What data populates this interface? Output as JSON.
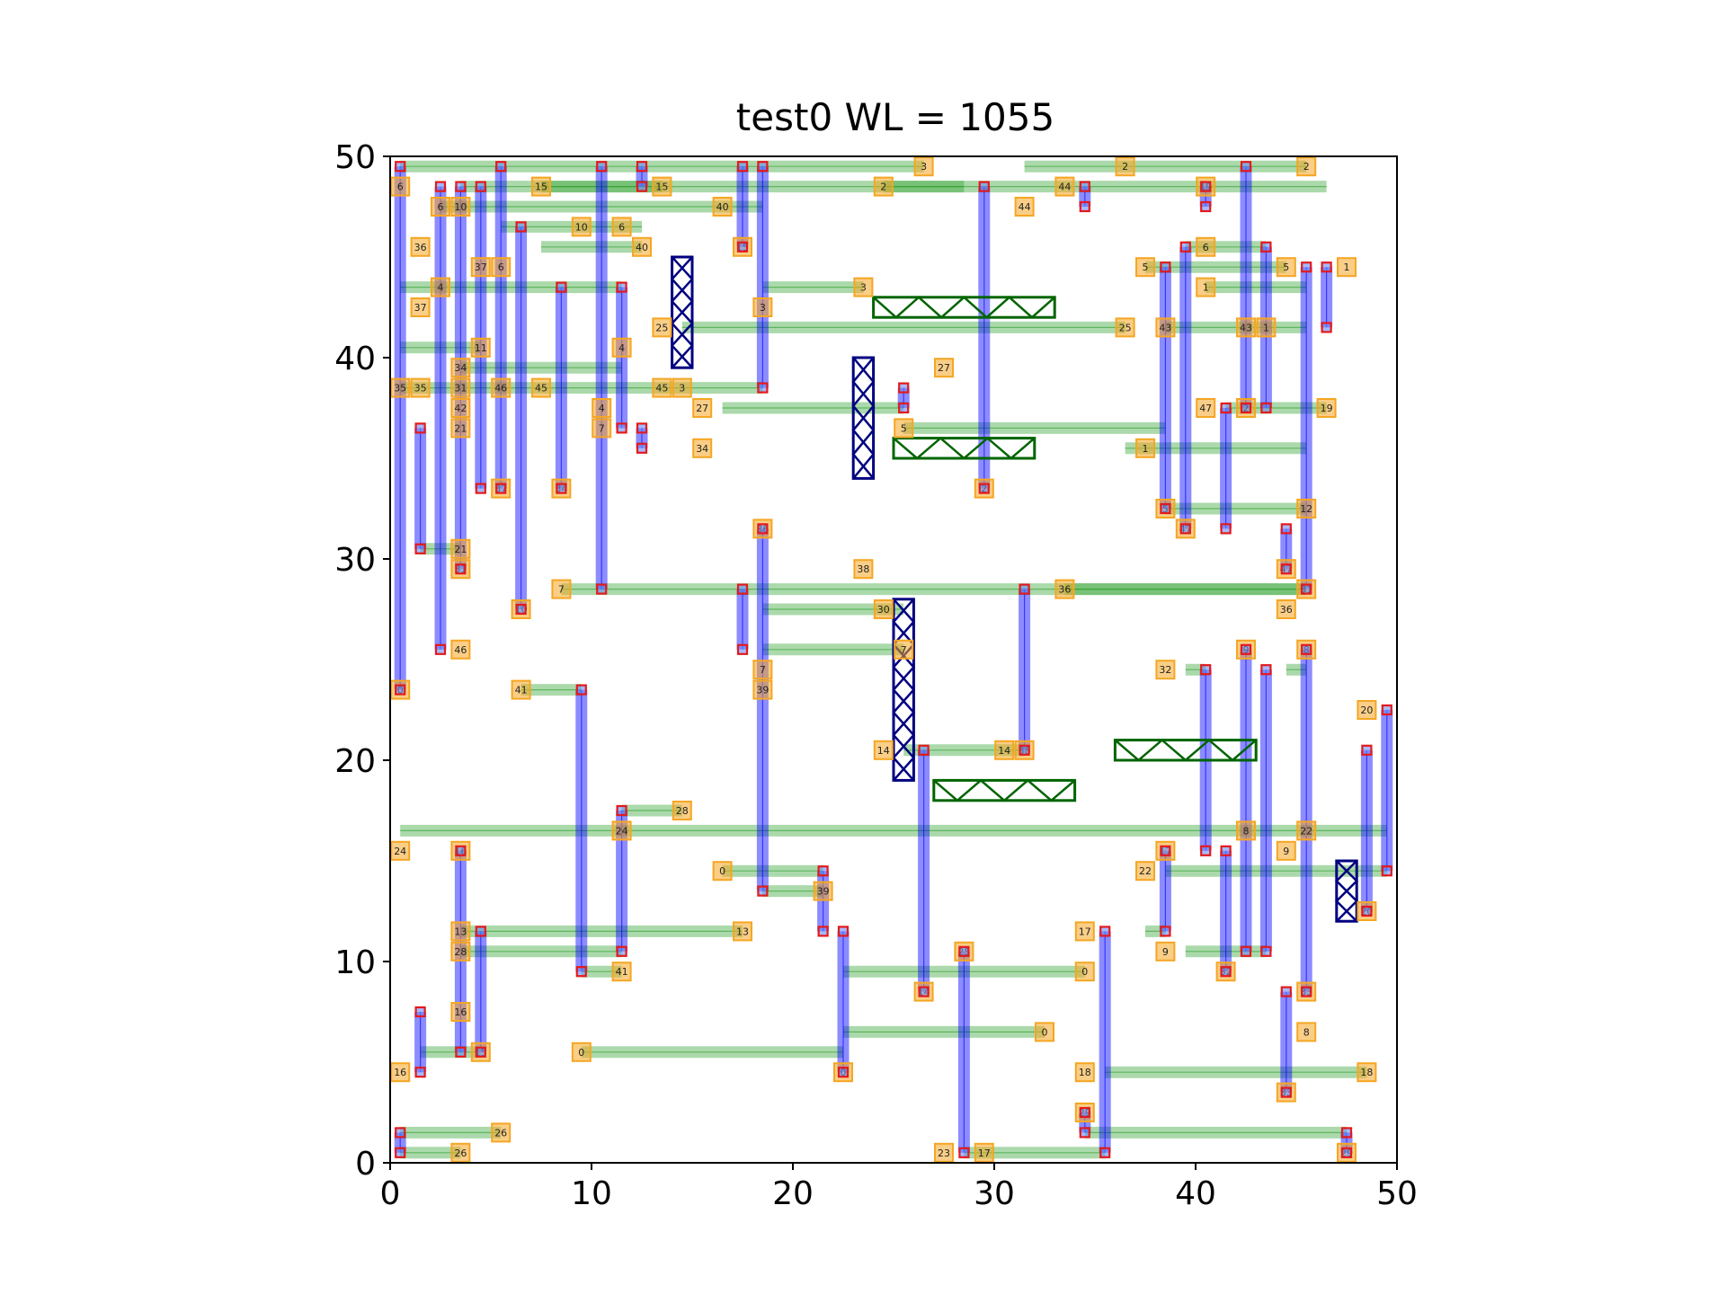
{
  "chart_data": {
    "type": "scatter",
    "title": "test0 WL = 1055",
    "xlabel": "",
    "ylabel": "",
    "xlim": [
      0,
      50
    ],
    "ylim": [
      0,
      50
    ],
    "xticks": [
      0,
      10,
      20,
      30,
      40,
      50
    ],
    "yticks": [
      0,
      10,
      20,
      30,
      40,
      50
    ],
    "grid": false,
    "colors": {
      "horizontal_wire": "#2ca02c",
      "vertical_wire": "#0000ff",
      "pin_box": "#f5a623",
      "via": "#e41a1c",
      "obstacle_v": "#000080",
      "obstacle_h": "#006400"
    },
    "horizontal_segments": [
      [
        0.5,
        49.5,
        26.5
      ],
      [
        3.5,
        48.5,
        46.5
      ],
      [
        2.5,
        47.5,
        18.5
      ],
      [
        5.5,
        46.5,
        12.5
      ],
      [
        7.5,
        45.5,
        12.5
      ],
      [
        0.5,
        43.5,
        11.5
      ],
      [
        0.5,
        40.5,
        4.5
      ],
      [
        3.5,
        39.5,
        11.5
      ],
      [
        0.5,
        38.5,
        18.5
      ],
      [
        14.5,
        41.5,
        36.5
      ],
      [
        16.5,
        37.5,
        25.5
      ],
      [
        25.5,
        36.5,
        38.5
      ],
      [
        18.5,
        43.5,
        23.5
      ],
      [
        1.5,
        30.5,
        3.5
      ],
      [
        8.5,
        28.5,
        45.5
      ],
      [
        18.5,
        27.5,
        25.5
      ],
      [
        18.5,
        25.5,
        25.5
      ],
      [
        6.5,
        23.5,
        9.5
      ],
      [
        25.5,
        20.5,
        31.5
      ],
      [
        0.5,
        16.5,
        49.5
      ],
      [
        11.5,
        17.5,
        14.5
      ],
      [
        16.5,
        14.5,
        21.5
      ],
      [
        18.5,
        13.5,
        21.5
      ],
      [
        3.5,
        11.5,
        17.5
      ],
      [
        3.5,
        10.5,
        11.5
      ],
      [
        9.5,
        9.5,
        11.5
      ],
      [
        22.5,
        9.5,
        34.5
      ],
      [
        22.5,
        6.5,
        32.5
      ],
      [
        9.5,
        5.5,
        22.5
      ],
      [
        1.5,
        5.5,
        4.5
      ],
      [
        0.5,
        1.5,
        5.5
      ],
      [
        0.5,
        0.5,
        3.5
      ],
      [
        28.5,
        0.5,
        35.5
      ],
      [
        35.5,
        4.5,
        48.5
      ],
      [
        34.5,
        1.5,
        47.5
      ],
      [
        38.5,
        14.5,
        49.5
      ],
      [
        37.5,
        11.5,
        38.5
      ],
      [
        39.5,
        10.5,
        43.5
      ],
      [
        36.5,
        35.5,
        45.5
      ],
      [
        38.5,
        32.5,
        45.5
      ],
      [
        41.5,
        37.5,
        46.5
      ],
      [
        40.5,
        43.5,
        45.5
      ],
      [
        38.5,
        41.5,
        45.5
      ],
      [
        37.5,
        44.5,
        44.5
      ],
      [
        39.5,
        45.5,
        43.5
      ],
      [
        24.5,
        48.5,
        28.5
      ],
      [
        31.5,
        49.5,
        45.5
      ],
      [
        7.5,
        48.5,
        13.5
      ],
      [
        33.5,
        28.5,
        45.5
      ],
      [
        39.5,
        24.5,
        40.5
      ],
      [
        44.5,
        24.5,
        45.5
      ]
    ],
    "vertical_segments": [
      [
        0.5,
        23.5,
        49.5
      ],
      [
        1.5,
        30.5,
        36.5
      ],
      [
        2.5,
        25.5,
        48.5
      ],
      [
        3.5,
        29.5,
        48.5
      ],
      [
        4.5,
        33.5,
        48.5
      ],
      [
        5.5,
        33.5,
        49.5
      ],
      [
        6.5,
        27.5,
        46.5
      ],
      [
        8.5,
        33.5,
        43.5
      ],
      [
        10.5,
        28.5,
        49.5
      ],
      [
        11.5,
        36.5,
        43.5
      ],
      [
        17.5,
        25.5,
        28.5
      ],
      [
        17.5,
        45.5,
        49.5
      ],
      [
        18.5,
        38.5,
        49.5
      ],
      [
        18.5,
        13.5,
        31.5
      ],
      [
        29.5,
        33.5,
        48.5
      ],
      [
        31.5,
        20.5,
        28.5
      ],
      [
        25.5,
        37.5,
        38.5
      ],
      [
        26.5,
        8.5,
        20.5
      ],
      [
        9.5,
        9.5,
        23.5
      ],
      [
        11.5,
        10.5,
        17.5
      ],
      [
        3.5,
        5.5,
        15.5
      ],
      [
        4.5,
        5.5,
        11.5
      ],
      [
        1.5,
        4.5,
        7.5
      ],
      [
        0.5,
        0.5,
        1.5
      ],
      [
        21.5,
        11.5,
        14.5
      ],
      [
        22.5,
        4.5,
        11.5
      ],
      [
        28.5,
        0.5,
        10.5
      ],
      [
        35.5,
        0.5,
        11.5
      ],
      [
        34.5,
        1.5,
        2.5
      ],
      [
        38.5,
        11.5,
        15.5
      ],
      [
        40.5,
        15.5,
        24.5
      ],
      [
        41.5,
        9.5,
        15.5
      ],
      [
        42.5,
        10.5,
        25.5
      ],
      [
        43.5,
        10.5,
        24.5
      ],
      [
        45.5,
        8.5,
        25.5
      ],
      [
        44.5,
        3.5,
        8.5
      ],
      [
        47.5,
        0.5,
        1.5
      ],
      [
        48.5,
        12.5,
        20.5
      ],
      [
        49.5,
        14.5,
        22.5
      ],
      [
        38.5,
        32.5,
        44.5
      ],
      [
        39.5,
        31.5,
        45.5
      ],
      [
        41.5,
        31.5,
        37.5
      ],
      [
        42.5,
        37.5,
        49.5
      ],
      [
        43.5,
        37.5,
        45.5
      ],
      [
        44.5,
        29.5,
        31.5
      ],
      [
        45.5,
        28.5,
        44.5
      ],
      [
        46.5,
        41.5,
        44.5
      ],
      [
        40.5,
        47.5,
        48.5
      ],
      [
        34.5,
        47.5,
        48.5
      ],
      [
        12.5,
        48.5,
        49.5
      ],
      [
        12.5,
        35.5,
        36.5
      ]
    ],
    "pins": [
      [
        0.5,
        48.5,
        "6"
      ],
      [
        2.5,
        47.5,
        "6"
      ],
      [
        1.5,
        45.5,
        "36"
      ],
      [
        3.5,
        47.5,
        "10"
      ],
      [
        4.5,
        44.5,
        "37"
      ],
      [
        5.5,
        44.5,
        "6"
      ],
      [
        0.5,
        38.5,
        "35"
      ],
      [
        1.5,
        38.5,
        "35"
      ],
      [
        3.5,
        38.5,
        "31"
      ],
      [
        5.5,
        38.5,
        "46"
      ],
      [
        7.5,
        38.5,
        "45"
      ],
      [
        13.5,
        38.5,
        "45"
      ],
      [
        14.5,
        38.5,
        "3"
      ],
      [
        2.5,
        43.5,
        "4"
      ],
      [
        1.5,
        42.5,
        "37"
      ],
      [
        4.5,
        40.5,
        "11"
      ],
      [
        3.5,
        39.5,
        "34"
      ],
      [
        3.5,
        37.5,
        "42"
      ],
      [
        3.5,
        36.5,
        "21"
      ],
      [
        5.5,
        33.5,
        "37"
      ],
      [
        8.5,
        33.5,
        "34"
      ],
      [
        3.5,
        30.5,
        "21"
      ],
      [
        3.5,
        29.5,
        "31"
      ],
      [
        6.5,
        27.5,
        "10"
      ],
      [
        3.5,
        25.5,
        "46"
      ],
      [
        0.5,
        23.5,
        "0"
      ],
      [
        8.5,
        28.5,
        "7"
      ],
      [
        10.5,
        37.5,
        "4"
      ],
      [
        10.5,
        36.5,
        "7"
      ],
      [
        11.5,
        40.5,
        "4"
      ],
      [
        15.5,
        35.5,
        "34"
      ],
      [
        15.5,
        37.5,
        "27"
      ],
      [
        13.5,
        41.5,
        "25"
      ],
      [
        7.5,
        48.5,
        "15"
      ],
      [
        13.5,
        48.5,
        "15"
      ],
      [
        16.5,
        47.5,
        "40"
      ],
      [
        9.5,
        46.5,
        "10"
      ],
      [
        11.5,
        46.5,
        "6"
      ],
      [
        12.5,
        45.5,
        "40"
      ],
      [
        17.5,
        45.5,
        "15"
      ],
      [
        26.5,
        49.5,
        "3"
      ],
      [
        23.5,
        43.5,
        "3"
      ],
      [
        18.5,
        42.5,
        "3"
      ],
      [
        27.5,
        39.5,
        "27"
      ],
      [
        24.5,
        48.5,
        "2"
      ],
      [
        31.5,
        47.5,
        "44"
      ],
      [
        33.5,
        48.5,
        "44"
      ],
      [
        36.5,
        49.5,
        "2"
      ],
      [
        45.5,
        49.5,
        "2"
      ],
      [
        40.5,
        48.5,
        "19"
      ],
      [
        37.5,
        44.5,
        "5"
      ],
      [
        44.5,
        44.5,
        "5"
      ],
      [
        40.5,
        45.5,
        "6"
      ],
      [
        47.5,
        44.5,
        "1"
      ],
      [
        40.5,
        43.5,
        "1"
      ],
      [
        36.5,
        41.5,
        "25"
      ],
      [
        38.5,
        41.5,
        "43"
      ],
      [
        42.5,
        41.5,
        "43"
      ],
      [
        43.5,
        41.5,
        "1"
      ],
      [
        40.5,
        37.5,
        "47"
      ],
      [
        42.5,
        37.5,
        "2"
      ],
      [
        46.5,
        37.5,
        "19"
      ],
      [
        25.5,
        36.5,
        "5"
      ],
      [
        37.5,
        35.5,
        "1"
      ],
      [
        29.5,
        33.5,
        "2"
      ],
      [
        38.5,
        32.5,
        "5"
      ],
      [
        39.5,
        31.5,
        "47"
      ],
      [
        45.5,
        32.5,
        "12"
      ],
      [
        44.5,
        29.5,
        "47"
      ],
      [
        45.5,
        28.5,
        "31"
      ],
      [
        44.5,
        27.5,
        "36"
      ],
      [
        33.5,
        28.5,
        "36"
      ],
      [
        18.5,
        31.5,
        "36"
      ],
      [
        23.5,
        29.5,
        "38"
      ],
      [
        24.5,
        27.5,
        "30"
      ],
      [
        25.5,
        25.5,
        "7"
      ],
      [
        18.5,
        24.5,
        "7"
      ],
      [
        18.5,
        23.5,
        "39"
      ],
      [
        6.5,
        23.5,
        "41"
      ],
      [
        24.5,
        20.5,
        "14"
      ],
      [
        30.5,
        20.5,
        "14"
      ],
      [
        31.5,
        20.5,
        "38"
      ],
      [
        38.5,
        24.5,
        "32"
      ],
      [
        42.5,
        25.5,
        "9"
      ],
      [
        45.5,
        25.5,
        "8"
      ],
      [
        48.5,
        22.5,
        "20"
      ],
      [
        11.5,
        16.5,
        "24"
      ],
      [
        14.5,
        17.5,
        "28"
      ],
      [
        0.5,
        15.5,
        "24"
      ],
      [
        3.5,
        15.5,
        "16"
      ],
      [
        16.5,
        14.5,
        "0"
      ],
      [
        21.5,
        13.5,
        "39"
      ],
      [
        17.5,
        11.5,
        "13"
      ],
      [
        3.5,
        11.5,
        "13"
      ],
      [
        3.5,
        10.5,
        "28"
      ],
      [
        11.5,
        9.5,
        "41"
      ],
      [
        28.5,
        10.5,
        "25"
      ],
      [
        26.5,
        8.5,
        "14"
      ],
      [
        34.5,
        9.5,
        "0"
      ],
      [
        32.5,
        6.5,
        "0"
      ],
      [
        9.5,
        5.5,
        "0"
      ],
      [
        22.5,
        4.5,
        "0"
      ],
      [
        3.5,
        7.5,
        "16"
      ],
      [
        4.5,
        5.5,
        "15"
      ],
      [
        0.5,
        4.5,
        "16"
      ],
      [
        5.5,
        1.5,
        "26"
      ],
      [
        3.5,
        0.5,
        "26"
      ],
      [
        27.5,
        0.5,
        "23"
      ],
      [
        29.5,
        0.5,
        "17"
      ],
      [
        34.5,
        4.5,
        "18"
      ],
      [
        48.5,
        4.5,
        "18"
      ],
      [
        34.5,
        2.5,
        "29"
      ],
      [
        47.5,
        0.5,
        "29"
      ],
      [
        34.5,
        11.5,
        "17"
      ],
      [
        38.5,
        15.5,
        "17"
      ],
      [
        44.5,
        15.5,
        "9"
      ],
      [
        37.5,
        14.5,
        "22"
      ],
      [
        42.5,
        16.5,
        "8"
      ],
      [
        45.5,
        16.5,
        "22"
      ],
      [
        38.5,
        10.5,
        "9"
      ],
      [
        41.5,
        9.5,
        "32"
      ],
      [
        45.5,
        8.5,
        "33"
      ],
      [
        45.5,
        6.5,
        "8"
      ],
      [
        44.5,
        3.5,
        "33"
      ],
      [
        48.5,
        12.5,
        "20"
      ]
    ],
    "obstacles_vertical": [
      [
        14,
        39.5,
        15,
        45
      ],
      [
        23,
        34,
        24,
        40
      ],
      [
        25,
        19,
        26,
        28
      ],
      [
        47,
        12,
        48,
        15
      ]
    ],
    "obstacles_horizontal": [
      [
        24,
        42,
        33,
        43
      ],
      [
        25,
        35,
        32,
        36
      ],
      [
        36,
        20,
        43,
        21
      ],
      [
        27,
        18,
        34,
        19
      ]
    ]
  }
}
